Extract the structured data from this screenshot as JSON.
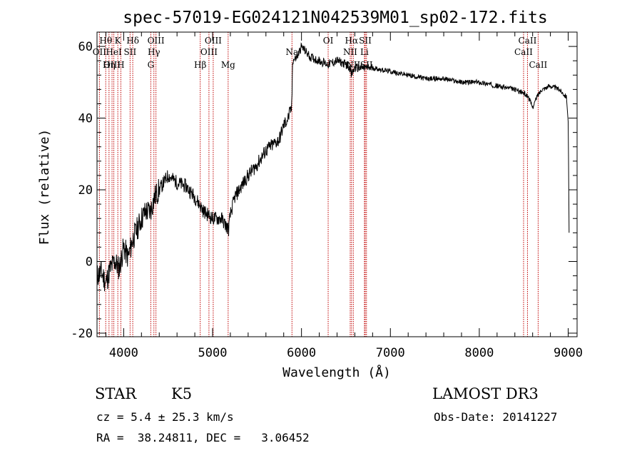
{
  "chart_data": {
    "type": "line",
    "title": "spec-57019-EG024121N042539M01_sp02-172.fits",
    "xlabel": "Wavelength (Å)",
    "ylabel": "Flux (relative)",
    "xlim": [
      3700,
      9100
    ],
    "ylim": [
      -21,
      64
    ],
    "xticks": [
      4000,
      5000,
      6000,
      7000,
      8000,
      9000
    ],
    "yticks": [
      -20,
      0,
      20,
      40,
      60
    ],
    "tick_labels_x": [
      "4000",
      "5000",
      "6000",
      "7000",
      "8000",
      "9000"
    ],
    "tick_labels_y": [
      "-20",
      "0",
      "20",
      "40",
      "60"
    ],
    "series": [
      {
        "name": "flux",
        "color": "#000000",
        "x": [
          3700,
          3750,
          3800,
          3850,
          3900,
          3950,
          4000,
          4050,
          4100,
          4150,
          4200,
          4250,
          4300,
          4350,
          4400,
          4450,
          4500,
          4600,
          4700,
          4800,
          4850,
          4900,
          5000,
          5100,
          5150,
          5180,
          5200,
          5250,
          5300,
          5400,
          5500,
          5600,
          5700,
          5750,
          5800,
          5850,
          5890,
          5900,
          5950,
          6000,
          6100,
          6200,
          6300,
          6400,
          6500,
          6550,
          6560,
          6600,
          6700,
          6800,
          7000,
          7200,
          7400,
          7600,
          7800,
          8000,
          8200,
          8400,
          8500,
          8550,
          8600,
          8650,
          8700,
          8800,
          8900,
          8980,
          9000,
          9010
        ],
        "y": [
          -4,
          -3,
          -6,
          -2,
          0,
          -2,
          4,
          1,
          6,
          9,
          12,
          14,
          14,
          18,
          20,
          22,
          24,
          22,
          21,
          18,
          16,
          14,
          12,
          12,
          10,
          9,
          13,
          18,
          20,
          24,
          27,
          31,
          33,
          34,
          38,
          40,
          43,
          56,
          57,
          60,
          57,
          56,
          55,
          56,
          55,
          54,
          52,
          54,
          54,
          54,
          53,
          52,
          51,
          51,
          50,
          50,
          49,
          48,
          47,
          46,
          43,
          46,
          48,
          49,
          48,
          46,
          39,
          8
        ]
      }
    ],
    "spectral_lines": [
      {
        "name": "Hθ",
        "wavelength": 3798,
        "row": 0
      },
      {
        "name": "K",
        "wavelength": 3934,
        "row": 0
      },
      {
        "name": "Hδ",
        "wavelength": 4102,
        "row": 0
      },
      {
        "name": "OIII",
        "wavelength": 4363,
        "row": 0
      },
      {
        "name": "OIII",
        "wavelength": 5007,
        "row": 0
      },
      {
        "name": "OI",
        "wavelength": 6300,
        "row": 0
      },
      {
        "name": "Hα",
        "wavelength": 6563,
        "row": 0
      },
      {
        "name": "SII",
        "wavelength": 6717,
        "row": 0
      },
      {
        "name": "CaII",
        "wavelength": 8542,
        "row": 0
      },
      {
        "name": "OII",
        "wavelength": 3727,
        "row": 1
      },
      {
        "name": "HeI",
        "wavelength": 3889,
        "row": 1
      },
      {
        "name": "SII",
        "wavelength": 4072,
        "row": 1
      },
      {
        "name": "Hγ",
        "wavelength": 4340,
        "row": 1
      },
      {
        "name": "OIII",
        "wavelength": 4959,
        "row": 1
      },
      {
        "name": "Na",
        "wavelength": 5893,
        "row": 1
      },
      {
        "name": "NII",
        "wavelength": 6548,
        "row": 1
      },
      {
        "name": "Li",
        "wavelength": 6708,
        "row": 1
      },
      {
        "name": "CaII",
        "wavelength": 8498,
        "row": 1
      },
      {
        "name": "OIII",
        "wavelength": 3869,
        "row": 2
      },
      {
        "name": "Hη",
        "wavelength": 3835,
        "row": 2
      },
      {
        "name": "H",
        "wavelength": 3968,
        "row": 2
      },
      {
        "name": "G",
        "wavelength": 4305,
        "row": 2
      },
      {
        "name": "Hβ",
        "wavelength": 4861,
        "row": 2
      },
      {
        "name": "Mg",
        "wavelength": 5175,
        "row": 2
      },
      {
        "name": "NII",
        "wavelength": 6583,
        "row": 2
      },
      {
        "name": "SII",
        "wavelength": 6731,
        "row": 2
      },
      {
        "name": "CaII",
        "wavelength": 8662,
        "row": 2
      }
    ],
    "line_marker_color": "#c00000"
  },
  "info": {
    "class_label": "STAR",
    "subclass": "K5",
    "survey": "LAMOST DR3",
    "redshift_text": "cz = 5.4 ± 25.3 km/s",
    "obs_date": "Obs-Date: 20141227",
    "coords": "RA =  38.24811, DEC =   3.06452"
  }
}
